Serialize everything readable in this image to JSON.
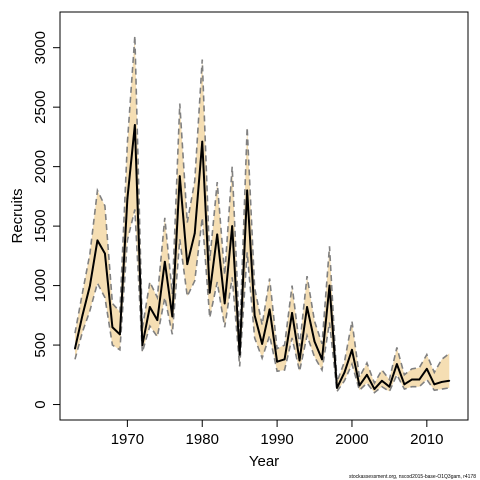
{
  "chart_data": {
    "type": "line",
    "xlabel": "Year",
    "ylabel": "Recruits",
    "xlim": [
      1961,
      2015.5
    ],
    "ylim": [
      -130,
      3300
    ],
    "x_ticks": [
      1970,
      1980,
      1990,
      2000,
      2010
    ],
    "y_ticks": [
      0,
      500,
      1000,
      1500,
      2000,
      2500,
      3000
    ],
    "grid": false,
    "legend": "none",
    "colors": {
      "band": "#f5deb3",
      "median": "#000000",
      "bounds": "#808080"
    },
    "x": [
      1963,
      1964,
      1965,
      1966,
      1967,
      1968,
      1969,
      1970,
      1971,
      1972,
      1973,
      1974,
      1975,
      1976,
      1977,
      1978,
      1979,
      1980,
      1981,
      1982,
      1983,
      1984,
      1985,
      1986,
      1987,
      1988,
      1989,
      1990,
      1991,
      1992,
      1993,
      1994,
      1995,
      1996,
      1997,
      1998,
      1999,
      2000,
      2001,
      2002,
      2003,
      2004,
      2005,
      2006,
      2007,
      2008,
      2009,
      2010,
      2011,
      2012,
      2013
    ],
    "series": [
      {
        "role": "median",
        "values": [
          470,
          750,
          1000,
          1380,
          1270,
          650,
          590,
          1730,
          2350,
          500,
          820,
          710,
          1200,
          740,
          1920,
          1180,
          1440,
          2210,
          940,
          1430,
          850,
          1500,
          420,
          1800,
          750,
          510,
          800,
          360,
          380,
          770,
          370,
          820,
          530,
          380,
          1000,
          140,
          270,
          460,
          160,
          250,
          130,
          200,
          150,
          340,
          170,
          210,
          210,
          300,
          170,
          190,
          200
        ]
      },
      {
        "role": "lower",
        "values": [
          380,
          610,
          790,
          1020,
          900,
          500,
          460,
          1380,
          1640,
          440,
          660,
          570,
          900,
          590,
          1390,
          910,
          1040,
          1570,
          730,
          1030,
          650,
          1070,
          320,
          1280,
          560,
          390,
          580,
          280,
          290,
          560,
          280,
          580,
          400,
          290,
          690,
          110,
          200,
          340,
          120,
          180,
          100,
          150,
          110,
          250,
          130,
          150,
          150,
          210,
          120,
          130,
          140
        ]
      },
      {
        "role": "upper",
        "values": [
          600,
          940,
          1270,
          1800,
          1670,
          850,
          780,
          2200,
          3100,
          640,
          1030,
          900,
          1570,
          930,
          2530,
          1530,
          1880,
          2900,
          1210,
          1870,
          1090,
          2000,
          560,
          2330,
          980,
          670,
          1060,
          470,
          500,
          1000,
          490,
          1080,
          700,
          510,
          1330,
          190,
          360,
          700,
          230,
          350,
          180,
          290,
          210,
          480,
          250,
          300,
          310,
          420,
          270,
          380,
          430
        ]
      }
    ]
  },
  "footnote": "stockassessment.org, nscod2015-base-O1Q3gam, r4178"
}
